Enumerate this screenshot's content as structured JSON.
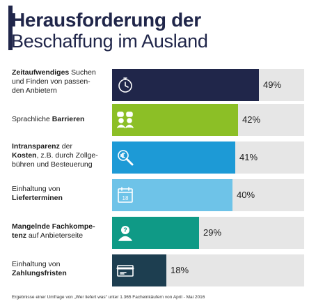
{
  "title": {
    "line1": "Herausforderung der",
    "line2": "Beschaffung im Ausland"
  },
  "footnote": "Ergebnisse einer Umfrage von „Wer liefert was“ unter 1.365 Facheinkäufern von April - Mai 2016",
  "chart_data": {
    "type": "bar",
    "orientation": "horizontal",
    "xlim": [
      0,
      100
    ],
    "title": "Herausforderung der Beschaffung im Ausland",
    "categories": [
      "Zeitaufwendiges Suchen und Finden von passenden Anbietern",
      "Sprachliche Barrieren",
      "Intransparenz der Kosten, z.B. durch Zollgebühren und Besteuerung",
      "Einhaltung von Lieferterminen",
      "Mangelnde Fachkompetenz auf Anbieterseite",
      "Einhaltung von Zahlungsfristen"
    ],
    "values": [
      49,
      42,
      41,
      40,
      29,
      18
    ],
    "value_labels": [
      "49%",
      "42%",
      "41%",
      "40%",
      "29%",
      "18%"
    ],
    "bar_colors": [
      "#20264a",
      "#8cbf26",
      "#1d9ad6",
      "#6ec3e8",
      "#0f9a86",
      "#1d3e50"
    ],
    "track_color": "#e6e6e6",
    "label_parts": [
      [
        {
          "t": "Zeitaufwendiges",
          "b": true
        },
        {
          "t": " Suchen und Finden von passen-",
          "b": false
        },
        {
          "t": "\nden Anbietern",
          "b": false
        }
      ],
      [
        {
          "t": "Sprachliche ",
          "b": false
        },
        {
          "t": "Barrieren",
          "b": true
        }
      ],
      [
        {
          "t": "Intransparenz",
          "b": true
        },
        {
          "t": " der\n",
          "b": false
        },
        {
          "t": "Kosten",
          "b": true
        },
        {
          "t": ", z.B. durch Zollge-\nbühren und Besteuerung",
          "b": false
        }
      ],
      [
        {
          "t": "Einhaltung von\n",
          "b": false
        },
        {
          "t": "Lieferterminen",
          "b": true
        }
      ],
      [
        {
          "t": "Mangelnde Fachkompe-\ntenz",
          "b": true
        },
        {
          "t": " auf Anbieterseite",
          "b": false
        }
      ],
      [
        {
          "t": "Einhaltung von\n",
          "b": false
        },
        {
          "t": "Zahlungsfristen",
          "b": true
        }
      ]
    ],
    "icons": [
      "stopwatch-icon",
      "people-speech-icon",
      "euro-magnifier-icon",
      "calendar-icon",
      "person-question-icon",
      "credit-card-icon"
    ],
    "calendar_day": "18"
  }
}
